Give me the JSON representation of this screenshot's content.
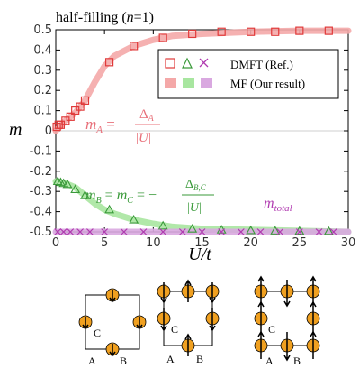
{
  "chart_data": {
    "type": "scatter",
    "title": "half-filling (n=1)",
    "title_parts": {
      "prefix": "half-filling (",
      "var": "n",
      "suffix": "=1)"
    },
    "xlabel": "U/t",
    "ylabel": "m",
    "xlim": [
      0,
      30
    ],
    "ylim": [
      -0.5,
      0.5
    ],
    "xticks": [
      "0",
      "5",
      "10",
      "15",
      "20",
      "25",
      "30"
    ],
    "yticks": [
      "0.5",
      "0.4",
      "0.3",
      "0.2",
      "0.1",
      "0",
      "-0.1",
      "-0.2",
      "-0.3",
      "-0.4",
      "-0.5"
    ],
    "grid": false,
    "legend": {
      "placement": "top-right",
      "row1_label": "DMFT (Ref.)",
      "row2_label": "MF (Our result)"
    },
    "colors": {
      "A": "#e03a3a",
      "B": "#3a9a3a",
      "total": "#b03ab0",
      "A_band": "#f4a8a8",
      "B_band": "#a8e6a0",
      "total_band": "#d9a8e0"
    },
    "annotations": {
      "mA": "m_A = Δ_A/|U|",
      "mB": "m_B = m_C = −Δ_{B,C}/|U|",
      "mtotal": "m_total"
    },
    "series": [
      {
        "key": "A",
        "marker": "square",
        "x": [
          0.1,
          0.3,
          0.5,
          1.0,
          1.5,
          2.0,
          2.5,
          3.0,
          5.5,
          8.0,
          11.0,
          14.0,
          17.0,
          20.0,
          22.5,
          25.0,
          28.0
        ],
        "y": [
          0.02,
          0.03,
          0.03,
          0.05,
          0.07,
          0.1,
          0.12,
          0.15,
          0.34,
          0.42,
          0.46,
          0.48,
          0.49,
          0.49,
          0.49,
          0.495,
          0.495
        ]
      },
      {
        "key": "B",
        "marker": "triangle",
        "x": [
          0.2,
          0.5,
          0.8,
          1.2,
          2.0,
          3.0,
          5.5,
          8.0,
          11.0,
          14.0,
          17.0,
          20.0,
          22.5,
          25.0,
          28.0
        ],
        "y": [
          -0.25,
          -0.255,
          -0.26,
          -0.265,
          -0.29,
          -0.32,
          -0.39,
          -0.44,
          -0.47,
          -0.485,
          -0.49,
          -0.493,
          -0.495,
          -0.496,
          -0.497
        ]
      },
      {
        "key": "total",
        "marker": "cross",
        "x": [
          0.2,
          0.8,
          1.5,
          2.5,
          3.5,
          5.0,
          7.0,
          9.0,
          11.0,
          13.0,
          15.0,
          17.0,
          19.0,
          21.0,
          23.0,
          25.0,
          27.0,
          28.5
        ],
        "y": [
          -0.5,
          -0.5,
          -0.5,
          -0.5,
          -0.5,
          -0.5,
          -0.5,
          -0.5,
          -0.5,
          -0.5,
          -0.5,
          -0.5,
          -0.5,
          -0.5,
          -0.5,
          -0.5,
          -0.5,
          -0.5
        ]
      }
    ],
    "mf_curves": [
      {
        "key": "A",
        "x": [
          0,
          1,
          2,
          3,
          4,
          5,
          6,
          8,
          10,
          12,
          15,
          20,
          25,
          30
        ],
        "y": [
          0.0,
          0.05,
          0.09,
          0.15,
          0.24,
          0.32,
          0.37,
          0.42,
          0.45,
          0.47,
          0.48,
          0.49,
          0.495,
          0.495
        ]
      },
      {
        "key": "B",
        "x": [
          0,
          1,
          2,
          3,
          4,
          5,
          6,
          8,
          10,
          12,
          15,
          20,
          25,
          30
        ],
        "y": [
          -0.25,
          -0.26,
          -0.28,
          -0.32,
          -0.36,
          -0.39,
          -0.41,
          -0.44,
          -0.46,
          -0.475,
          -0.485,
          -0.49,
          -0.495,
          -0.5
        ]
      },
      {
        "key": "total",
        "x": [
          0,
          30
        ],
        "y": [
          -0.5,
          -0.5
        ]
      }
    ],
    "lattice_labels": [
      "A",
      "B",
      "C"
    ]
  }
}
